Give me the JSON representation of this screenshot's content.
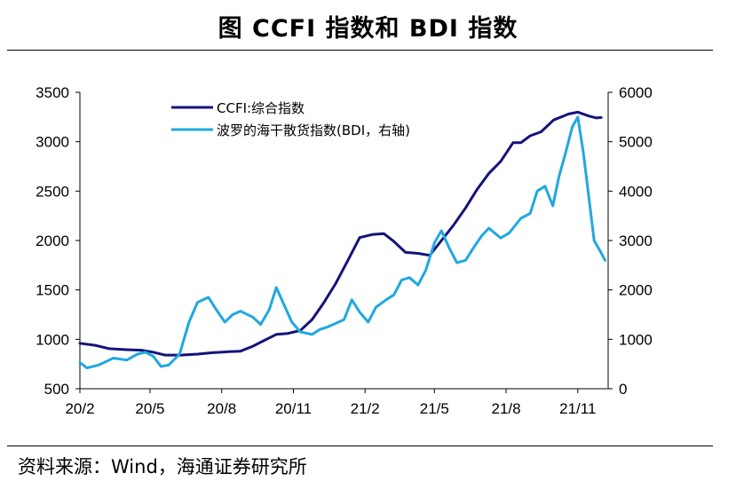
{
  "title": "图 CCFI 指数和 BDI 指数",
  "source": "资料来源：Wind，海通证券研究所",
  "colors": {
    "ccfi": "#14137a",
    "bdi": "#20a8e0",
    "axis": "#000000"
  },
  "chart_data": {
    "type": "line",
    "x_ticks": [
      "20/2",
      "20/5",
      "20/8",
      "20/11",
      "21/2",
      "21/5",
      "21/8",
      "21/11"
    ],
    "y_left": {
      "ticks": [
        "3500",
        "3000",
        "2500",
        "2000",
        "1500",
        "1000",
        "500"
      ],
      "range": [
        500,
        3500
      ]
    },
    "y_right": {
      "ticks": [
        "6000",
        "5000",
        "4000",
        "3000",
        "2000",
        "1000",
        "0"
      ],
      "range": [
        0,
        6000
      ]
    },
    "series": [
      {
        "name": "CCFI:综合指数",
        "axis": "left",
        "points": [
          [
            "2020-02-01",
            960
          ],
          [
            "2020-02-20",
            940
          ],
          [
            "2020-03-10",
            905
          ],
          [
            "2020-04-01",
            895
          ],
          [
            "2020-04-20",
            890
          ],
          [
            "2020-05-05",
            870
          ],
          [
            "2020-05-20",
            840
          ],
          [
            "2020-06-10",
            840
          ],
          [
            "2020-07-01",
            850
          ],
          [
            "2020-07-20",
            865
          ],
          [
            "2020-08-10",
            875
          ],
          [
            "2020-08-25",
            880
          ],
          [
            "2020-09-10",
            930
          ],
          [
            "2020-09-25",
            990
          ],
          [
            "2020-10-10",
            1050
          ],
          [
            "2020-10-25",
            1060
          ],
          [
            "2020-11-10",
            1090
          ],
          [
            "2020-11-25",
            1200
          ],
          [
            "2020-12-10",
            1370
          ],
          [
            "2020-12-25",
            1560
          ],
          [
            "2021-01-10",
            1800
          ],
          [
            "2021-01-25",
            2030
          ],
          [
            "2021-02-10",
            2060
          ],
          [
            "2021-02-25",
            2070
          ],
          [
            "2021-03-10",
            1990
          ],
          [
            "2021-03-25",
            1880
          ],
          [
            "2021-04-10",
            1870
          ],
          [
            "2021-04-25",
            1850
          ],
          [
            "2021-05-10",
            2000
          ],
          [
            "2021-05-25",
            2150
          ],
          [
            "2021-06-10",
            2330
          ],
          [
            "2021-06-25",
            2520
          ],
          [
            "2021-07-10",
            2680
          ],
          [
            "2021-07-25",
            2800
          ],
          [
            "2021-08-10",
            2990
          ],
          [
            "2021-08-20",
            2990
          ],
          [
            "2021-09-01",
            3060
          ],
          [
            "2021-09-15",
            3100
          ],
          [
            "2021-10-01",
            3220
          ],
          [
            "2021-10-20",
            3280
          ],
          [
            "2021-11-01",
            3300
          ],
          [
            "2021-11-15",
            3260
          ],
          [
            "2021-11-25",
            3240
          ],
          [
            "2021-12-01",
            3245
          ]
        ]
      },
      {
        "name": "波罗的海干散货指数(BDI，右轴)",
        "axis": "right",
        "points": [
          [
            "2020-02-01",
            530
          ],
          [
            "2020-02-10",
            420
          ],
          [
            "2020-02-25",
            480
          ],
          [
            "2020-03-15",
            620
          ],
          [
            "2020-04-01",
            580
          ],
          [
            "2020-04-15",
            700
          ],
          [
            "2020-04-25",
            740
          ],
          [
            "2020-05-05",
            660
          ],
          [
            "2020-05-15",
            450
          ],
          [
            "2020-05-25",
            480
          ],
          [
            "2020-06-08",
            700
          ],
          [
            "2020-06-20",
            1350
          ],
          [
            "2020-07-01",
            1750
          ],
          [
            "2020-07-15",
            1850
          ],
          [
            "2020-07-25",
            1600
          ],
          [
            "2020-08-05",
            1350
          ],
          [
            "2020-08-15",
            1500
          ],
          [
            "2020-08-25",
            1570
          ],
          [
            "2020-09-10",
            1450
          ],
          [
            "2020-09-20",
            1300
          ],
          [
            "2020-10-01",
            1600
          ],
          [
            "2020-10-10",
            2050
          ],
          [
            "2020-10-20",
            1700
          ],
          [
            "2020-10-30",
            1350
          ],
          [
            "2020-11-10",
            1150
          ],
          [
            "2020-11-25",
            1100
          ],
          [
            "2020-12-05",
            1200
          ],
          [
            "2020-12-15",
            1250
          ],
          [
            "2020-12-25",
            1320
          ],
          [
            "2021-01-05",
            1400
          ],
          [
            "2021-01-15",
            1800
          ],
          [
            "2021-01-25",
            1550
          ],
          [
            "2021-02-05",
            1350
          ],
          [
            "2021-02-15",
            1650
          ],
          [
            "2021-02-28",
            1800
          ],
          [
            "2021-03-10",
            1900
          ],
          [
            "2021-03-20",
            2200
          ],
          [
            "2021-03-30",
            2250
          ],
          [
            "2021-04-10",
            2100
          ],
          [
            "2021-04-20",
            2400
          ],
          [
            "2021-05-01",
            2950
          ],
          [
            "2021-05-10",
            3200
          ],
          [
            "2021-05-20",
            2850
          ],
          [
            "2021-05-30",
            2550
          ],
          [
            "2021-06-10",
            2600
          ],
          [
            "2021-06-20",
            2850
          ],
          [
            "2021-07-01",
            3100
          ],
          [
            "2021-07-10",
            3250
          ],
          [
            "2021-07-25",
            3050
          ],
          [
            "2021-08-05",
            3150
          ],
          [
            "2021-08-20",
            3450
          ],
          [
            "2021-09-01",
            3550
          ],
          [
            "2021-09-10",
            4000
          ],
          [
            "2021-09-20",
            4100
          ],
          [
            "2021-09-30",
            3700
          ],
          [
            "2021-10-08",
            4300
          ],
          [
            "2021-10-16",
            4750
          ],
          [
            "2021-10-25",
            5300
          ],
          [
            "2021-11-01",
            5500
          ],
          [
            "2021-11-08",
            4800
          ],
          [
            "2021-11-15",
            3900
          ],
          [
            "2021-11-22",
            3000
          ],
          [
            "2021-12-01",
            2750
          ],
          [
            "2021-12-06",
            2600
          ]
        ]
      }
    ],
    "legend_position": "top-left",
    "grid": false
  }
}
